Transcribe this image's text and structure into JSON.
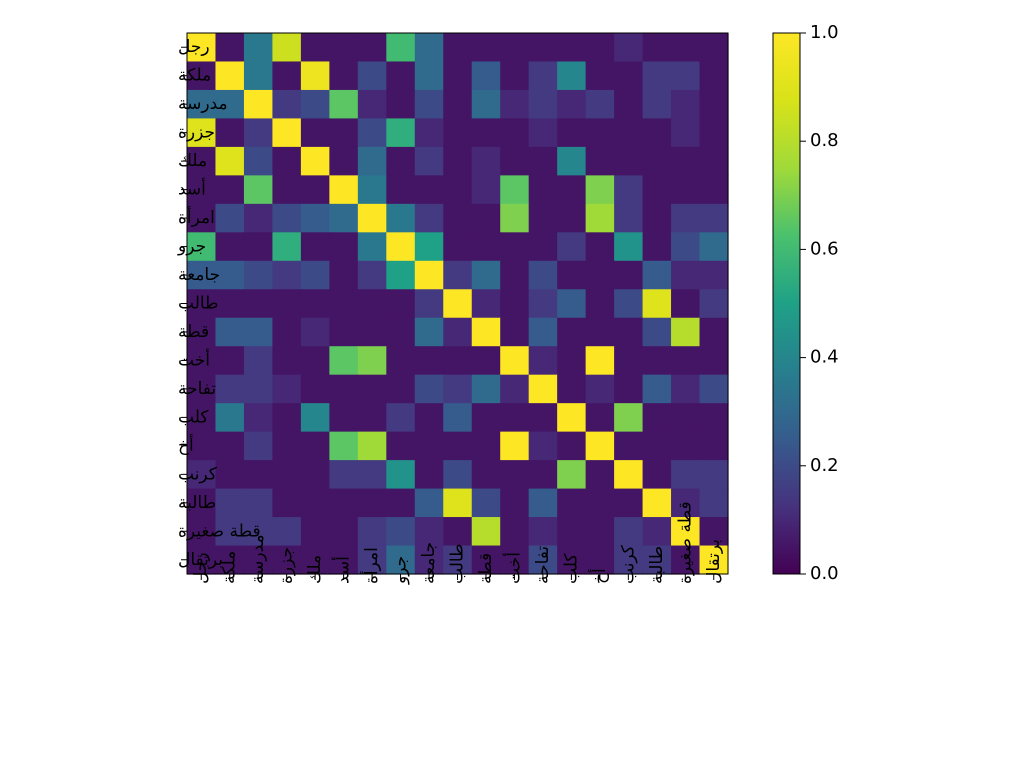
{
  "chart_data": {
    "type": "heatmap",
    "title": "",
    "xlabel": "",
    "ylabel": "",
    "colormap": "viridis",
    "vmin": 0.0,
    "vmax": 1.0,
    "labels": [
      "رجل",
      "ملكة",
      "مدرسة",
      "جزرة",
      "ملك",
      "أسد",
      "امرأة",
      "جرو",
      "جامعة",
      "طالب",
      "قطة",
      "أخت",
      "تفاحة",
      "كلب",
      "أخ",
      "كرنب",
      "طالبة",
      "قطة صغيرة",
      "برتقال"
    ],
    "colorbar_ticks": [
      "0.0",
      "0.2",
      "0.4",
      "0.6",
      "0.8",
      "1.0"
    ],
    "matrix": [
      [
        1.0,
        0.05,
        0.35,
        0.85,
        0.05,
        0.05,
        0.05,
        0.6,
        0.3,
        0.05,
        0.05,
        0.05,
        0.05,
        0.05,
        0.05,
        0.1,
        0.05,
        0.05,
        0.05
      ],
      [
        0.05,
        1.0,
        0.35,
        0.05,
        0.95,
        0.05,
        0.2,
        0.05,
        0.3,
        0.05,
        0.25,
        0.05,
        0.15,
        0.4,
        0.05,
        0.05,
        0.15,
        0.15,
        0.05
      ],
      [
        0.3,
        0.3,
        1.0,
        0.15,
        0.2,
        0.65,
        0.1,
        0.05,
        0.2,
        0.05,
        0.3,
        0.1,
        0.15,
        0.1,
        0.15,
        0.05,
        0.15,
        0.1,
        0.05
      ],
      [
        0.9,
        0.05,
        0.15,
        1.0,
        0.05,
        0.05,
        0.2,
        0.55,
        0.1,
        0.05,
        0.05,
        0.05,
        0.1,
        0.05,
        0.05,
        0.05,
        0.05,
        0.1,
        0.05
      ],
      [
        0.05,
        0.9,
        0.2,
        0.05,
        1.0,
        0.05,
        0.3,
        0.05,
        0.15,
        0.05,
        0.1,
        0.05,
        0.05,
        0.4,
        0.05,
        0.05,
        0.05,
        0.05,
        0.05
      ],
      [
        0.05,
        0.05,
        0.65,
        0.05,
        0.05,
        1.0,
        0.35,
        0.05,
        0.05,
        0.05,
        0.1,
        0.65,
        0.05,
        0.05,
        0.7,
        0.15,
        0.05,
        0.05,
        0.05
      ],
      [
        0.05,
        0.2,
        0.1,
        0.2,
        0.25,
        0.3,
        1.0,
        0.35,
        0.15,
        0.05,
        0.05,
        0.7,
        0.05,
        0.05,
        0.75,
        0.15,
        0.05,
        0.15,
        0.15
      ],
      [
        0.6,
        0.05,
        0.05,
        0.55,
        0.05,
        0.05,
        0.35,
        1.0,
        0.5,
        0.05,
        0.05,
        0.05,
        0.05,
        0.15,
        0.05,
        0.45,
        0.05,
        0.2,
        0.3
      ],
      [
        0.25,
        0.25,
        0.2,
        0.15,
        0.2,
        0.05,
        0.15,
        0.5,
        1.0,
        0.15,
        0.3,
        0.05,
        0.2,
        0.05,
        0.05,
        0.05,
        0.25,
        0.1,
        0.1
      ],
      [
        0.05,
        0.05,
        0.05,
        0.05,
        0.05,
        0.05,
        0.05,
        0.05,
        0.15,
        1.0,
        0.1,
        0.05,
        0.15,
        0.25,
        0.05,
        0.2,
        0.9,
        0.05,
        0.15
      ],
      [
        0.05,
        0.25,
        0.25,
        0.05,
        0.1,
        0.05,
        0.05,
        0.05,
        0.3,
        0.1,
        1.0,
        0.05,
        0.25,
        0.05,
        0.05,
        0.05,
        0.2,
        0.8,
        0.05
      ],
      [
        0.05,
        0.05,
        0.15,
        0.05,
        0.05,
        0.65,
        0.7,
        0.05,
        0.05,
        0.05,
        0.05,
        1.0,
        0.1,
        0.05,
        1.0,
        0.05,
        0.05,
        0.05,
        0.05
      ],
      [
        0.05,
        0.15,
        0.15,
        0.1,
        0.05,
        0.05,
        0.05,
        0.05,
        0.2,
        0.15,
        0.3,
        0.1,
        1.0,
        0.05,
        0.1,
        0.05,
        0.25,
        0.1,
        0.2
      ],
      [
        0.05,
        0.35,
        0.1,
        0.05,
        0.4,
        0.05,
        0.05,
        0.15,
        0.05,
        0.25,
        0.05,
        0.05,
        0.05,
        1.0,
        0.05,
        0.7,
        0.05,
        0.05,
        0.05
      ],
      [
        0.05,
        0.05,
        0.15,
        0.05,
        0.05,
        0.65,
        0.75,
        0.05,
        0.05,
        0.05,
        0.05,
        1.0,
        0.1,
        0.05,
        1.0,
        0.05,
        0.05,
        0.05,
        0.05
      ],
      [
        0.1,
        0.05,
        0.05,
        0.05,
        0.05,
        0.15,
        0.15,
        0.45,
        0.05,
        0.2,
        0.05,
        0.05,
        0.05,
        0.7,
        0.05,
        1.0,
        0.05,
        0.15,
        0.15
      ],
      [
        0.05,
        0.15,
        0.15,
        0.05,
        0.05,
        0.05,
        0.05,
        0.05,
        0.25,
        0.9,
        0.2,
        0.05,
        0.25,
        0.05,
        0.05,
        0.05,
        1.0,
        0.1,
        0.15
      ],
      [
        0.05,
        0.15,
        0.15,
        0.15,
        0.05,
        0.05,
        0.15,
        0.2,
        0.1,
        0.05,
        0.8,
        0.05,
        0.1,
        0.05,
        0.05,
        0.15,
        0.1,
        1.0,
        0.05
      ],
      [
        0.05,
        0.05,
        0.05,
        0.05,
        0.05,
        0.05,
        0.15,
        0.3,
        0.1,
        0.15,
        0.05,
        0.05,
        0.2,
        0.05,
        0.05,
        0.15,
        0.15,
        0.05,
        1.0
      ]
    ]
  }
}
